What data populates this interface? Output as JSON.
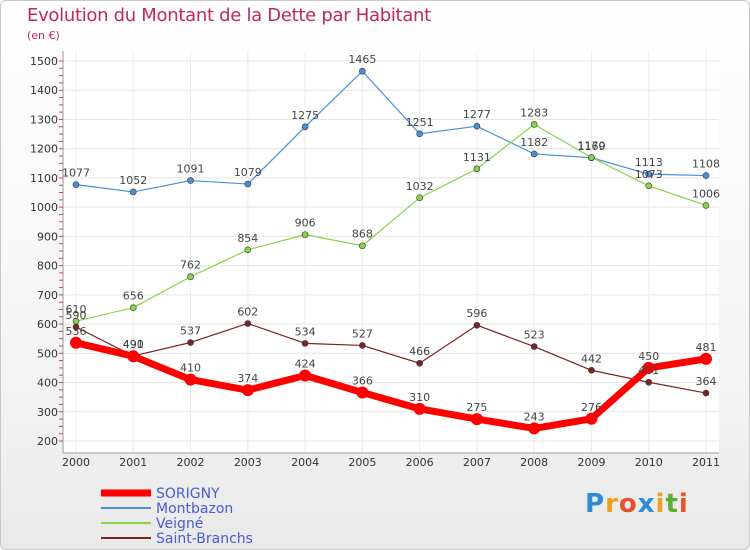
{
  "chart_data": {
    "type": "line",
    "title": "Evolution du Montant de la Dette par Habitant",
    "subtitle": "(en €)",
    "categories": [
      "2000",
      "2001",
      "2002",
      "2003",
      "2004",
      "2005",
      "2006",
      "2007",
      "2008",
      "2009",
      "2010",
      "2011"
    ],
    "ylim": [
      200,
      1500
    ],
    "yticks": [
      200,
      300,
      400,
      500,
      600,
      700,
      800,
      900,
      1000,
      1100,
      1200,
      1300,
      1400,
      1500
    ],
    "grid": true,
    "legend_position": "bottom-left",
    "series": [
      {
        "name": "SORIGNY",
        "color": "#ff0000",
        "values": [
          536,
          490,
          410,
          374,
          424,
          366,
          310,
          275,
          243,
          276,
          450,
          481
        ]
      },
      {
        "name": "Montbazon",
        "color": "#4a90d9",
        "values": [
          1077,
          1052,
          1091,
          1079,
          1275,
          1465,
          1251,
          1277,
          1182,
          1169,
          1113,
          1108
        ]
      },
      {
        "name": "Veigné",
        "color": "#88d44a",
        "values": [
          610,
          656,
          762,
          854,
          906,
          868,
          1032,
          1131,
          1283,
          1170,
          1073,
          1006
        ]
      },
      {
        "name": "Saint-Branchs",
        "color": "#7a2323",
        "values": [
          590,
          491,
          537,
          602,
          534,
          527,
          466,
          596,
          523,
          442,
          401,
          364
        ]
      }
    ]
  },
  "logo": {
    "letters": [
      "P",
      "r",
      "o",
      "x",
      "i",
      "t",
      "i"
    ],
    "colors": [
      "#2e8bd9",
      "#f0a020",
      "#e85030",
      "#2e8bd9",
      "#f0a020",
      "#5cb030",
      "#e85030"
    ]
  }
}
